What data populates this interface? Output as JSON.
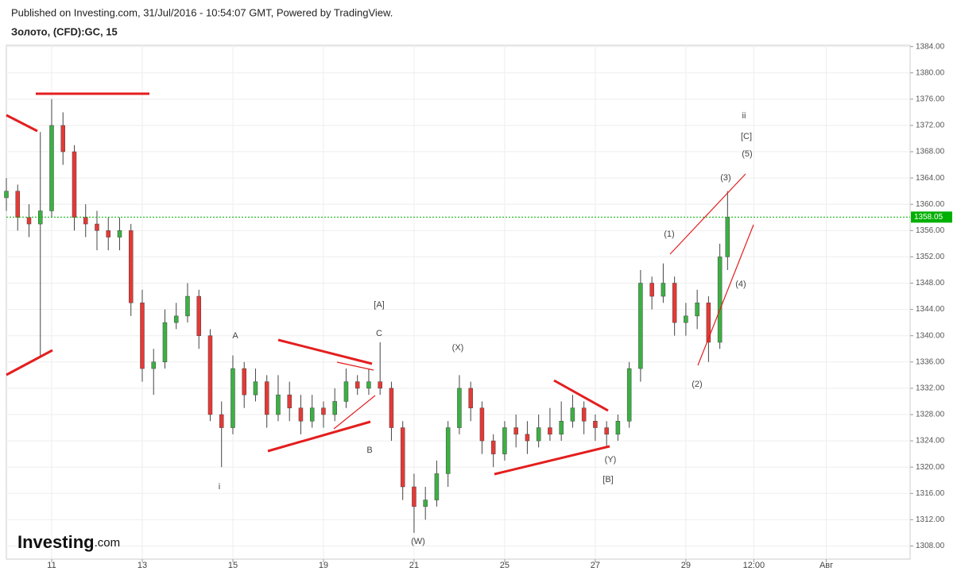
{
  "header": "Published on Investing.com, 31/Jul/2016 - 10:54:07 GMT, Powered by TradingView.",
  "logo": {
    "name": "Investing",
    "suffix": ".com"
  },
  "chart_data": {
    "type": "candlestick",
    "title": "Золото, (CFD):GC, 15",
    "up_color": "#3cb043",
    "down_color": "#e53935",
    "grid": true,
    "last_price": 1358.05,
    "last_price_color": "#00b000",
    "xlim": [
      0,
      19.95
    ],
    "ylim": [
      1306,
      1384.2
    ],
    "xticks": [
      {
        "value": 1,
        "label": "11"
      },
      {
        "value": 3,
        "label": "13"
      },
      {
        "value": 5,
        "label": "15"
      },
      {
        "value": 7,
        "label": "19"
      },
      {
        "value": 9,
        "label": "21"
      },
      {
        "value": 11,
        "label": "25"
      },
      {
        "value": 13,
        "label": "27"
      },
      {
        "value": 15,
        "label": "29"
      },
      {
        "value": 16.5,
        "label": "12:00"
      },
      {
        "value": 18.1,
        "label": "Авг"
      }
    ],
    "yticks": [
      {
        "value": 1308,
        "label": "1308.00"
      },
      {
        "value": 1312,
        "label": "1312.00"
      },
      {
        "value": 1316,
        "label": "1316.00"
      },
      {
        "value": 1320,
        "label": "1320.00"
      },
      {
        "value": 1324,
        "label": "1324.00"
      },
      {
        "value": 1328,
        "label": "1328.00"
      },
      {
        "value": 1332,
        "label": "1332.00"
      },
      {
        "value": 1336,
        "label": "1336.00"
      },
      {
        "value": 1340,
        "label": "1340.00"
      },
      {
        "value": 1344,
        "label": "1344.00"
      },
      {
        "value": 1348,
        "label": "1348.00"
      },
      {
        "value": 1352,
        "label": "1352.00"
      },
      {
        "value": 1356,
        "label": "1356.00"
      },
      {
        "value": 1360,
        "label": "1360.00"
      },
      {
        "value": 1364,
        "label": "1364.00"
      },
      {
        "value": 1368,
        "label": "1368.00"
      },
      {
        "value": 1372,
        "label": "1372.00"
      },
      {
        "value": 1376,
        "label": "1376.00"
      },
      {
        "value": 1380,
        "label": "1380.00"
      },
      {
        "value": 1384,
        "label": "1384.00"
      }
    ],
    "x": [
      0,
      0.25,
      0.5,
      0.75,
      1,
      1.25,
      1.5,
      1.75,
      2,
      2.25,
      2.5,
      2.75,
      3,
      3.25,
      3.5,
      3.75,
      4,
      4.25,
      4.5,
      4.75,
      5,
      5.25,
      5.5,
      5.75,
      6,
      6.25,
      6.5,
      6.75,
      7,
      7.25,
      7.5,
      7.75,
      8,
      8.25,
      8.5,
      8.75,
      9,
      9.25,
      9.5,
      9.75,
      10,
      10.25,
      10.5,
      10.75,
      11,
      11.25,
      11.5,
      11.75,
      12,
      12.25,
      12.5,
      12.75,
      13,
      13.25,
      13.5,
      13.75,
      14,
      14.25,
      14.5,
      14.75,
      15,
      15.25,
      15.5,
      15.75,
      15.92
    ],
    "open": [
      1361,
      1362,
      1358,
      1357,
      1359,
      1372,
      1368,
      1358,
      1357,
      1356,
      1355,
      1356,
      1345,
      1335,
      1336,
      1342,
      1343,
      1346,
      1340,
      1328,
      1326,
      1335,
      1331,
      1333,
      1328,
      1331,
      1329,
      1327,
      1329,
      1328,
      1330,
      1333,
      1332,
      1333,
      1332,
      1326,
      1317,
      1314,
      1315,
      1319,
      1326,
      1332,
      1329,
      1324,
      1322,
      1326,
      1325,
      1324,
      1326,
      1325,
      1327,
      1329,
      1327,
      1326,
      1325,
      1327,
      1335,
      1348,
      1346,
      1348,
      1342,
      1343,
      1345,
      1339,
      1352
    ],
    "high": [
      1364,
      1363,
      1360,
      1371,
      1376,
      1374,
      1369,
      1360,
      1359,
      1358,
      1358,
      1357,
      1347,
      1338,
      1344,
      1345,
      1348,
      1347,
      1341,
      1330,
      1337,
      1336,
      1335,
      1334,
      1334,
      1333,
      1331,
      1331,
      1330,
      1332,
      1335,
      1334,
      1335,
      1339,
      1333,
      1327,
      1319,
      1317,
      1321,
      1327,
      1334,
      1333,
      1330,
      1325,
      1327,
      1328,
      1327,
      1328,
      1329,
      1330,
      1331,
      1330,
      1328,
      1327,
      1328,
      1336,
      1350,
      1349,
      1351,
      1349,
      1345,
      1347,
      1346,
      1354,
      1362
    ],
    "low": [
      1359,
      1356,
      1355,
      1337,
      1358,
      1366,
      1356,
      1355,
      1353,
      1353,
      1353,
      1343,
      1333,
      1331,
      1335,
      1341,
      1342,
      1338,
      1327,
      1320,
      1325,
      1329,
      1330,
      1326,
      1327,
      1327,
      1325,
      1326,
      1326,
      1327,
      1329,
      1331,
      1331,
      1331,
      1324,
      1315,
      1310,
      1312,
      1314,
      1317,
      1325,
      1327,
      1322,
      1320,
      1321,
      1323,
      1322,
      1323,
      1324,
      1324,
      1326,
      1325,
      1324,
      1323,
      1324,
      1326,
      1333,
      1344,
      1345,
      1340,
      1340,
      1341,
      1336,
      1338,
      1350
    ],
    "close": [
      1362,
      1358,
      1357,
      1359,
      1372,
      1368,
      1358,
      1357,
      1356,
      1355,
      1356,
      1345,
      1335,
      1336,
      1342,
      1343,
      1346,
      1340,
      1328,
      1326,
      1335,
      1331,
      1333,
      1328,
      1331,
      1329,
      1327,
      1329,
      1328,
      1330,
      1333,
      1332,
      1333,
      1332,
      1326,
      1317,
      1314,
      1315,
      1319,
      1326,
      1332,
      1329,
      1324,
      1322,
      1326,
      1325,
      1324,
      1326,
      1325,
      1327,
      1329,
      1327,
      1326,
      1325,
      1327,
      1335,
      1348,
      1346,
      1348,
      1342,
      1343,
      1345,
      1339,
      1352,
      1358
    ],
    "annotations": [
      "ii",
      "[C]",
      "(5)",
      "(3)",
      "(1)",
      "(4)",
      "(2)",
      "[A]",
      "C",
      "A",
      "B",
      "i",
      "(X)",
      "(W)",
      "(Y)",
      "[B]"
    ]
  }
}
